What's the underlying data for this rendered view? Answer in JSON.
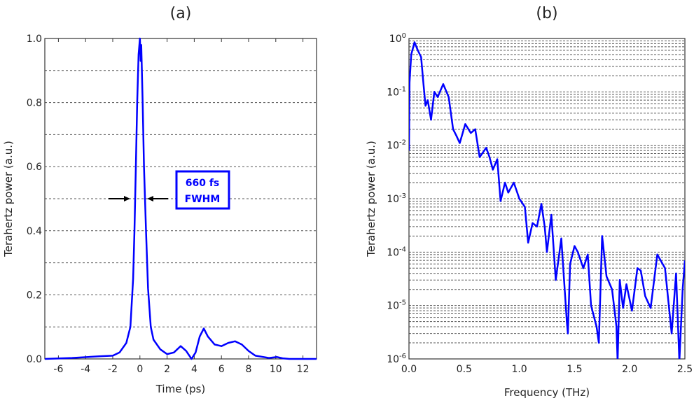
{
  "chart_data": [
    {
      "type": "line",
      "panel_label": "(a)",
      "xlabel": "Time (ps)",
      "ylabel": "Terahertz power (a.u.)",
      "xlim": [
        -7,
        13
      ],
      "ylim": [
        0,
        1.0
      ],
      "xticks": [
        "-6",
        "-4",
        "-2",
        "0",
        "2",
        "4",
        "6",
        "8",
        "10",
        "12"
      ],
      "xtick_values": [
        -6,
        -4,
        -2,
        0,
        2,
        4,
        6,
        8,
        10,
        12
      ],
      "yticks": [
        "0.0",
        "0.2",
        "0.4",
        "0.6",
        "0.8",
        "1.0"
      ],
      "ytick_values": [
        0,
        0.2,
        0.4,
        0.6,
        0.8,
        1.0
      ],
      "grid": "horizontal dashed at 0.1 steps",
      "line_color": "#0000ff",
      "annotation": {
        "line1": "660 fs",
        "line2": "FWHM",
        "level": 0.5,
        "left_x": -0.35,
        "right_x": 0.35
      },
      "x": [
        -7,
        -5,
        -3,
        -2,
        -1.5,
        -1,
        -0.7,
        -0.5,
        -0.4,
        -0.3,
        -0.2,
        -0.1,
        0,
        0.05,
        0.1,
        0.2,
        0.3,
        0.45,
        0.6,
        0.8,
        1,
        1.5,
        2,
        2.5,
        3,
        3.4,
        3.8,
        4.1,
        4.4,
        4.7,
        5,
        5.5,
        6,
        6.5,
        7,
        7.5,
        8,
        8.5,
        9.5,
        10.1,
        10.5,
        11,
        13
      ],
      "y": [
        0,
        0.003,
        0.008,
        0.01,
        0.02,
        0.05,
        0.1,
        0.25,
        0.4,
        0.6,
        0.8,
        0.95,
        1.0,
        0.93,
        0.98,
        0.8,
        0.6,
        0.4,
        0.22,
        0.1,
        0.06,
        0.03,
        0.015,
        0.02,
        0.04,
        0.025,
        0.0,
        0.02,
        0.07,
        0.095,
        0.07,
        0.045,
        0.04,
        0.05,
        0.055,
        0.045,
        0.025,
        0.01,
        0.003,
        0.006,
        0.002,
        0,
        0
      ]
    },
    {
      "type": "line",
      "panel_label": "(b)",
      "xlabel": "Frequency (THz)",
      "ylabel": "Terahertz power (a.u.)",
      "xlim": [
        0,
        2.5
      ],
      "ylim": [
        1e-06,
        1
      ],
      "yscale": "log",
      "xticks": [
        "0.0",
        "0.5",
        "1.0",
        "1.5",
        "2.0",
        "2.5"
      ],
      "xtick_values": [
        0,
        0.5,
        1.0,
        1.5,
        2.0,
        2.5
      ],
      "yticks": [
        {
          "base": "10",
          "exp": "0"
        },
        {
          "base": "10",
          "exp": "-1"
        },
        {
          "base": "10",
          "exp": "-2"
        },
        {
          "base": "10",
          "exp": "-3"
        },
        {
          "base": "10",
          "exp": "-4"
        },
        {
          "base": "10",
          "exp": "-5"
        },
        {
          "base": "10",
          "exp": "-6"
        }
      ],
      "grid": "horizontal dashed at major and minor decades",
      "line_color": "#0000ff",
      "x": [
        0,
        0.005,
        0.02,
        0.05,
        0.08,
        0.11,
        0.13,
        0.15,
        0.17,
        0.2,
        0.23,
        0.26,
        0.31,
        0.36,
        0.4,
        0.43,
        0.46,
        0.51,
        0.56,
        0.6,
        0.64,
        0.7,
        0.73,
        0.76,
        0.8,
        0.83,
        0.87,
        0.9,
        0.95,
        1.0,
        1.05,
        1.08,
        1.12,
        1.16,
        1.2,
        1.23,
        1.25,
        1.29,
        1.33,
        1.38,
        1.43,
        1.44,
        1.46,
        1.5,
        1.53,
        1.58,
        1.62,
        1.65,
        1.7,
        1.72,
        1.75,
        1.79,
        1.84,
        1.88,
        1.89,
        1.91,
        1.94,
        1.97,
        2.02,
        2.07,
        2.1,
        2.14,
        2.19,
        2.25,
        2.32,
        2.38,
        2.42,
        2.45,
        2.48,
        2.5
      ],
      "y": [
        0.008,
        0.15,
        0.5,
        0.85,
        0.6,
        0.45,
        0.15,
        0.055,
        0.07,
        0.03,
        0.1,
        0.08,
        0.14,
        0.08,
        0.02,
        0.015,
        0.011,
        0.025,
        0.017,
        0.02,
        0.006,
        0.009,
        0.006,
        0.0035,
        0.0055,
        0.0009,
        0.002,
        0.0013,
        0.002,
        0.001,
        0.0007,
        0.00015,
        0.00035,
        0.0003,
        0.0008,
        0.0003,
        0.0001,
        0.0005,
        3e-05,
        0.00018,
        5e-06,
        3e-06,
        6e-05,
        0.00013,
        0.0001,
        5e-05,
        9e-05,
        1e-05,
        4e-06,
        2e-06,
        0.0002,
        3.5e-05,
        2e-05,
        4e-06,
        9e-07,
        3e-05,
        9e-06,
        2.5e-05,
        8e-06,
        5e-05,
        4.5e-05,
        1.5e-05,
        9e-06,
        9e-05,
        5e-05,
        3e-06,
        4e-05,
        9e-07,
        2e-05,
        7e-05
      ]
    }
  ]
}
